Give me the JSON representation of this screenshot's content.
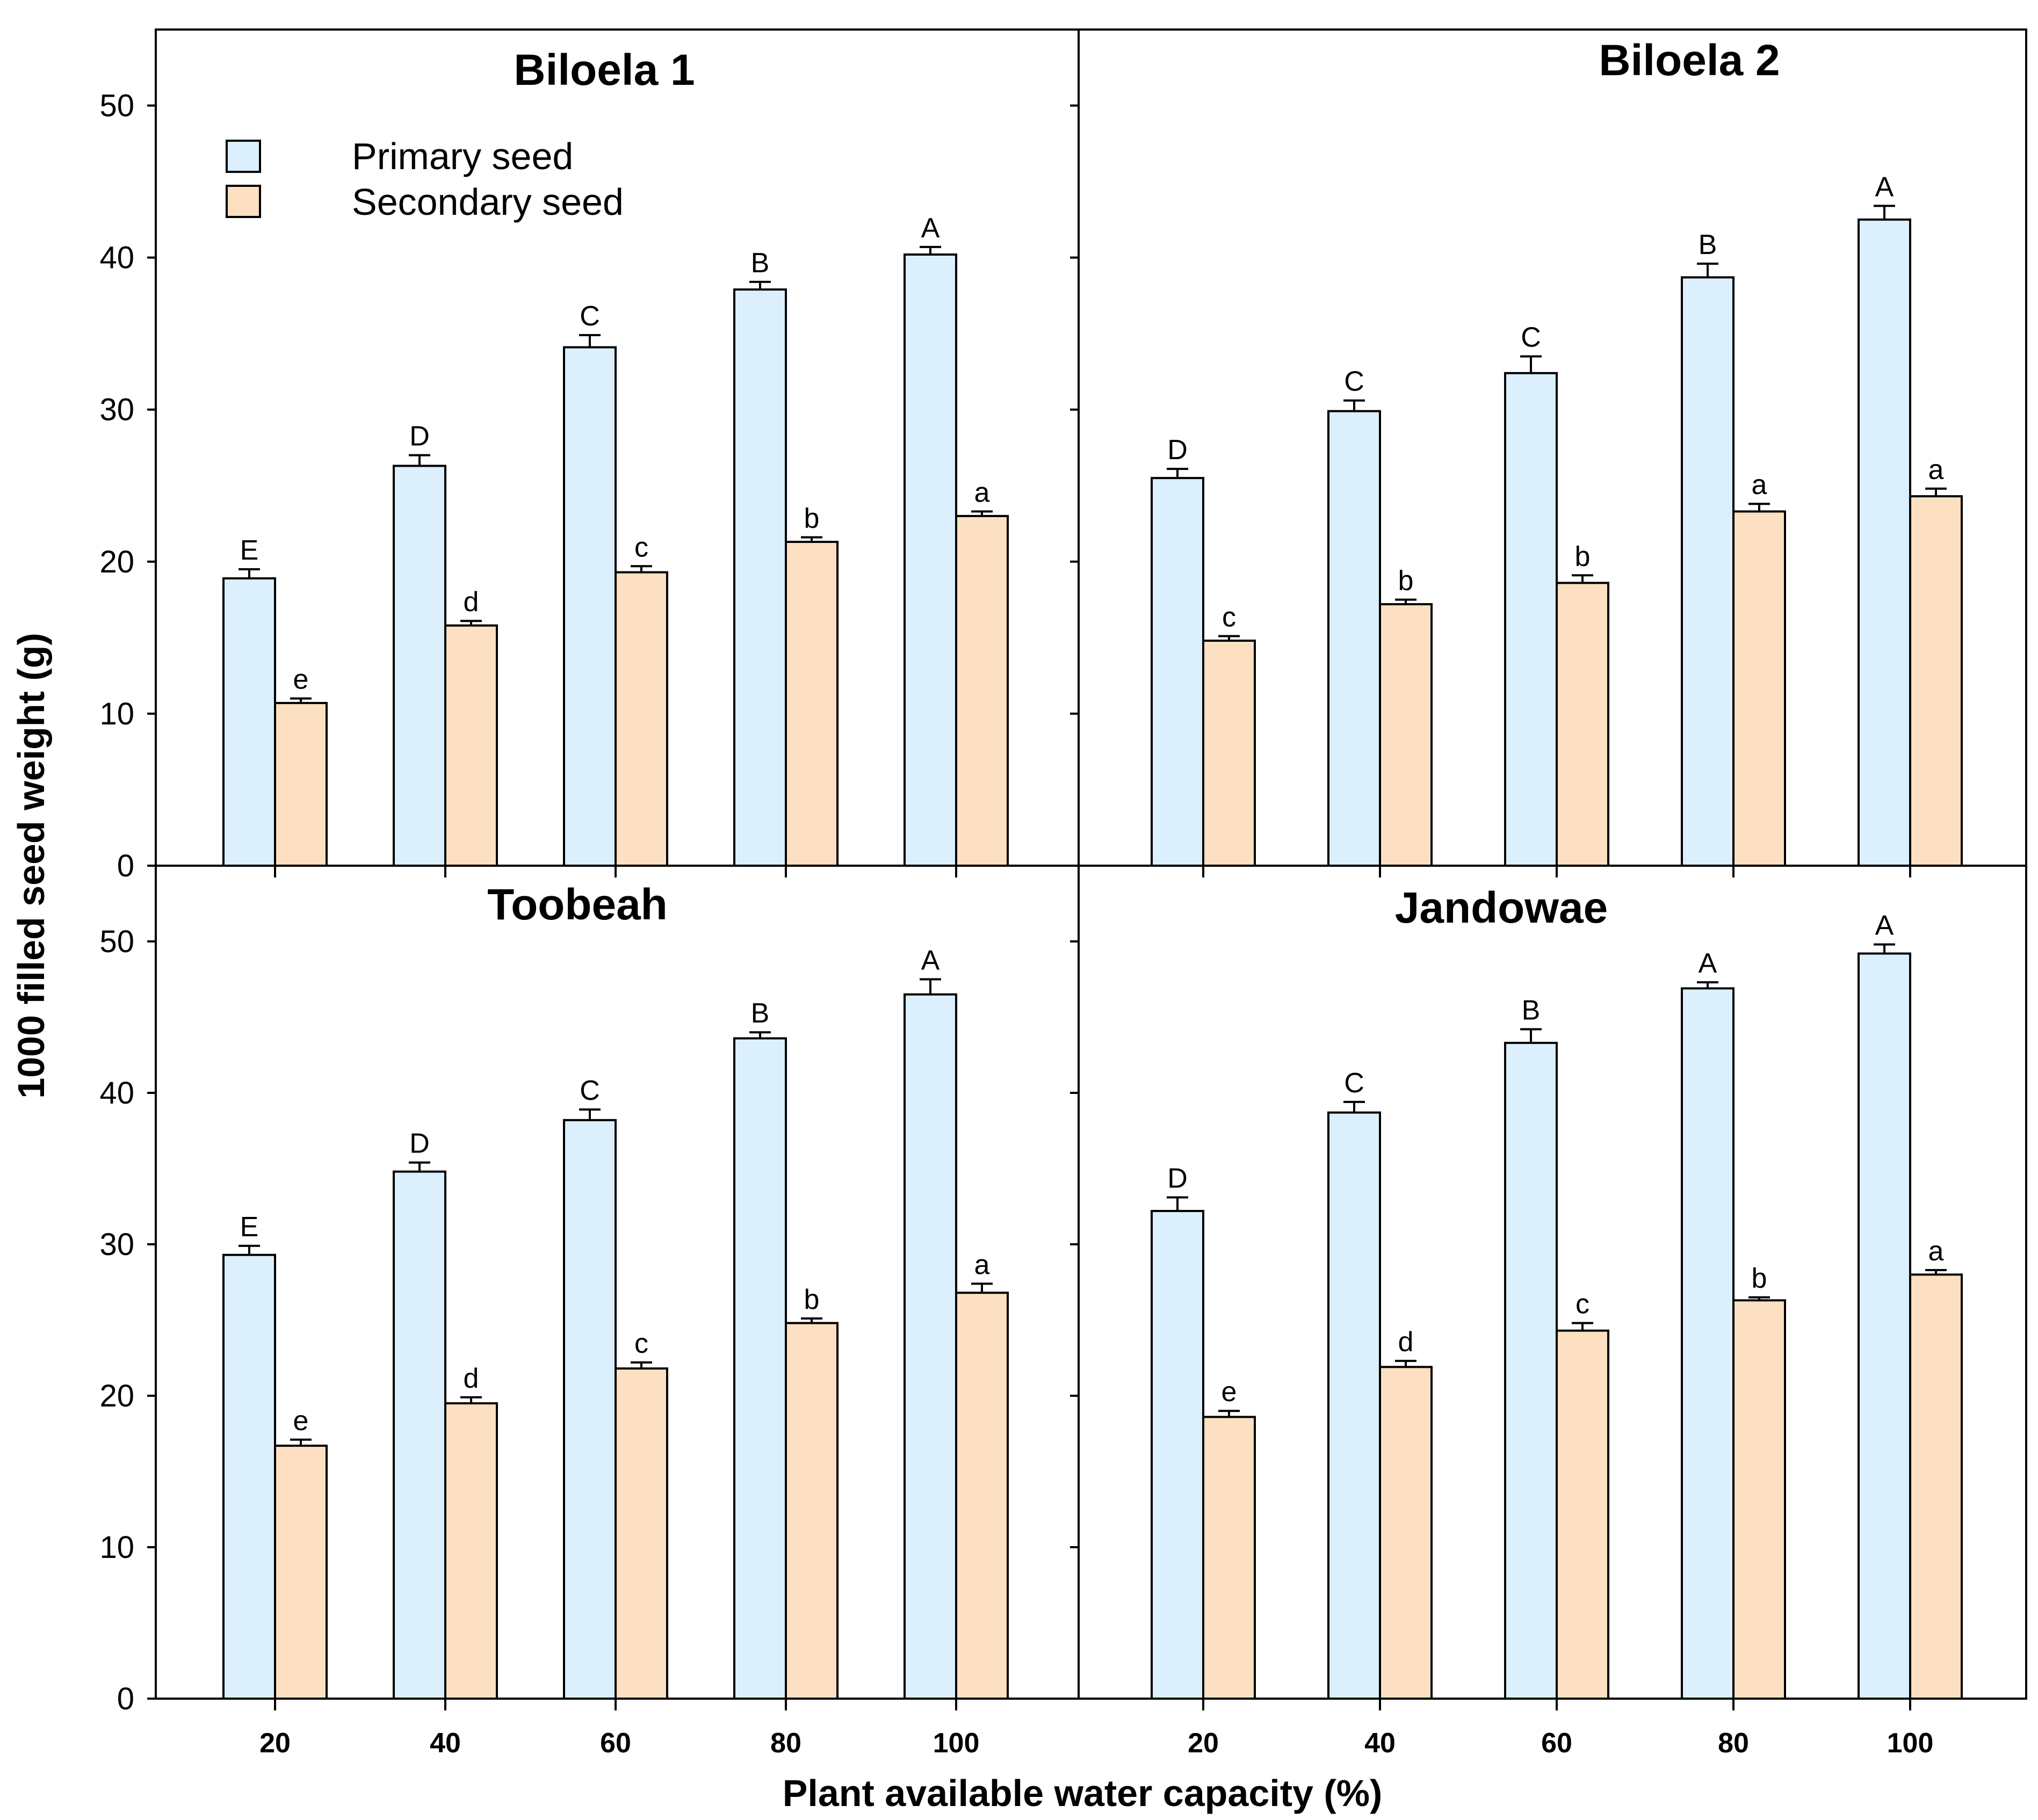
{
  "chart_data": {
    "type": "bar",
    "layout": "2x2 panels",
    "xlabel": "Plant available water capacity (%)",
    "ylabel": "1000 filled seed weight (g)",
    "ylim": [
      0,
      55
    ],
    "yticks": [
      "0",
      "10",
      "20",
      "30",
      "40",
      "50"
    ],
    "categories": [
      "20",
      "40",
      "60",
      "80",
      "100"
    ],
    "legend": {
      "position": "top-left of first panel",
      "entries": [
        {
          "name": "Primary seed",
          "color": "#dbeffd"
        },
        {
          "name": "Secondary seed",
          "color": "#fde0c1"
        }
      ]
    },
    "panels": [
      {
        "title": "Biloela 1",
        "series": [
          {
            "name": "Primary seed",
            "values": [
              18.9,
              26.3,
              34.1,
              37.9,
              40.2
            ],
            "errors": [
              0.6,
              0.7,
              0.8,
              0.5,
              0.5
            ],
            "letters": [
              "E",
              "D",
              "C",
              "B",
              "A"
            ]
          },
          {
            "name": "Secondary seed",
            "values": [
              10.7,
              15.8,
              19.3,
              21.3,
              23.0
            ],
            "errors": [
              0.3,
              0.3,
              0.4,
              0.3,
              0.3
            ],
            "letters": [
              "e",
              "d",
              "c",
              "b",
              "a"
            ]
          }
        ]
      },
      {
        "title": "Biloela 2",
        "series": [
          {
            "name": "Primary seed",
            "values": [
              25.5,
              29.9,
              32.4,
              38.7,
              42.5
            ],
            "errors": [
              0.6,
              0.7,
              1.1,
              0.9,
              0.9
            ],
            "letters": [
              "D",
              "C",
              "C",
              "B",
              "A"
            ]
          },
          {
            "name": "Secondary seed",
            "values": [
              14.8,
              17.2,
              18.6,
              23.3,
              24.3
            ],
            "errors": [
              0.3,
              0.3,
              0.5,
              0.5,
              0.5
            ],
            "letters": [
              "c",
              "b",
              "b",
              "a",
              "a"
            ]
          }
        ]
      },
      {
        "title": "Toobeah",
        "series": [
          {
            "name": "Primary seed",
            "values": [
              29.3,
              34.8,
              38.2,
              43.6,
              46.5
            ],
            "errors": [
              0.6,
              0.6,
              0.7,
              0.4,
              1.0
            ],
            "letters": [
              "E",
              "D",
              "C",
              "B",
              "A"
            ]
          },
          {
            "name": "Secondary seed",
            "values": [
              16.7,
              19.5,
              21.8,
              24.8,
              26.8
            ],
            "errors": [
              0.4,
              0.4,
              0.4,
              0.3,
              0.6
            ],
            "letters": [
              "e",
              "d",
              "c",
              "b",
              "a"
            ]
          }
        ]
      },
      {
        "title": "Jandowae",
        "series": [
          {
            "name": "Primary seed",
            "values": [
              32.2,
              38.7,
              43.3,
              46.9,
              49.2
            ],
            "errors": [
              0.9,
              0.7,
              0.9,
              0.4,
              0.6
            ],
            "letters": [
              "D",
              "C",
              "B",
              "A",
              "A"
            ]
          },
          {
            "name": "Secondary seed",
            "values": [
              18.6,
              21.9,
              24.3,
              26.3,
              28.0
            ],
            "errors": [
              0.4,
              0.4,
              0.5,
              0.2,
              0.3
            ],
            "letters": [
              "e",
              "d",
              "c",
              "b",
              "a"
            ]
          }
        ]
      }
    ]
  }
}
